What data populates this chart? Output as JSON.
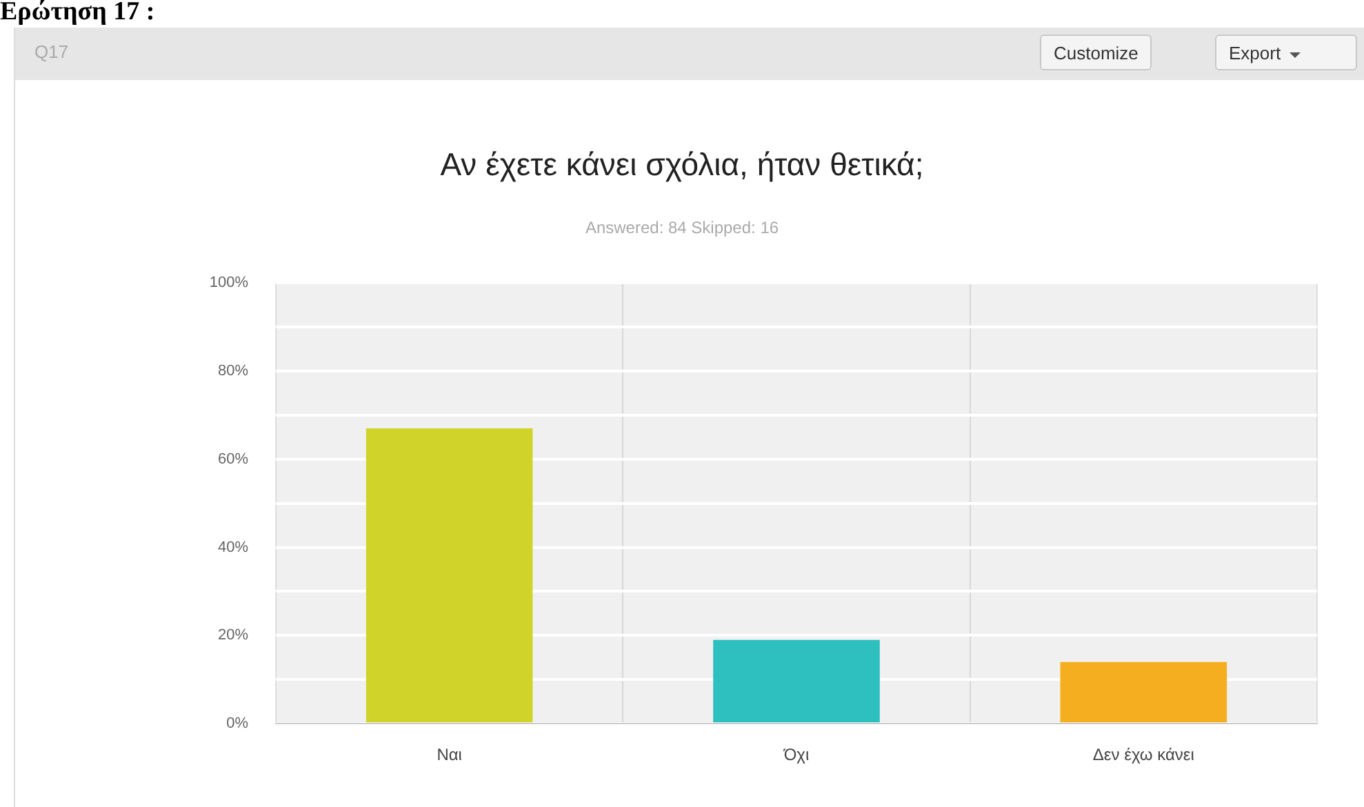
{
  "chart_data": {
    "type": "bar",
    "title": "Αν έχετε κάνει σχόλια, ήταν θετικά;",
    "subtitle": "Answered: 84   Skipped: 16",
    "annotations": [
      "Ερώτηση 17 :",
      "Q17",
      "Customize",
      "Export"
    ],
    "categories": [
      "Ναι",
      "Όχι",
      "Δεν έχω κάνει"
    ],
    "values": [
      67,
      19,
      14
    ],
    "colors": [
      "#d0d42a",
      "#2ebfbf",
      "#f5ae1f"
    ],
    "ylim": [
      0,
      100
    ],
    "yticks": [
      {
        "value": 0,
        "label": "0%"
      },
      {
        "value": 10,
        "label": null
      },
      {
        "value": 20,
        "label": "20%"
      },
      {
        "value": 30,
        "label": null
      },
      {
        "value": 40,
        "label": "40%"
      },
      {
        "value": 50,
        "label": null
      },
      {
        "value": 60,
        "label": "60%"
      },
      {
        "value": 70,
        "label": null
      },
      {
        "value": 80,
        "label": "80%"
      },
      {
        "value": 90,
        "label": null
      },
      {
        "value": 100,
        "label": "100%"
      }
    ],
    "grid": true
  }
}
